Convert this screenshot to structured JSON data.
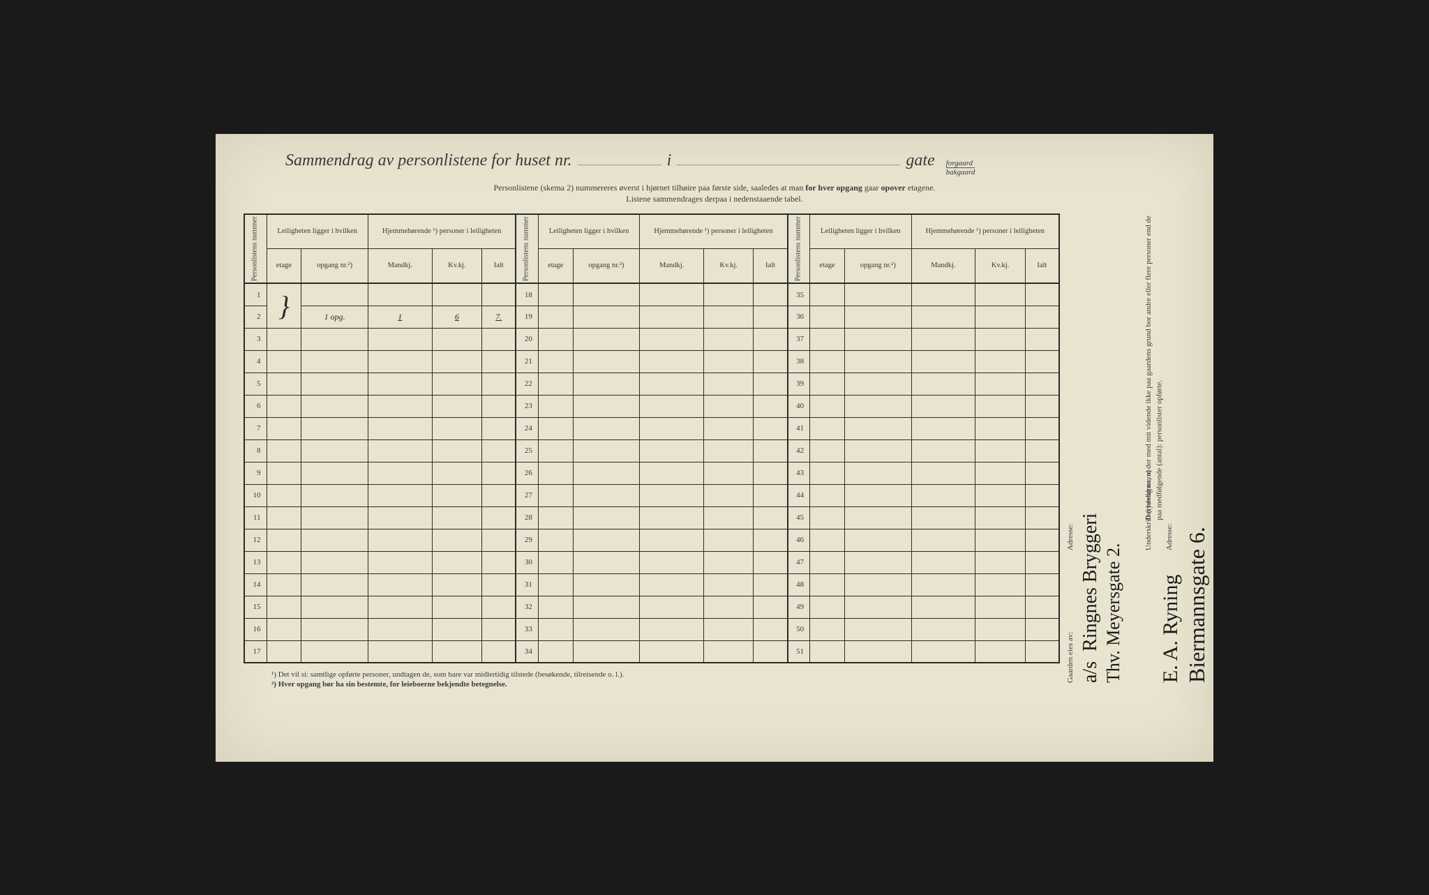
{
  "colors": {
    "paper": "#e8e4cf",
    "ink": "#3a3a3a",
    "border": "#2a2a2a",
    "handwriting": "#1a1a1a"
  },
  "typography": {
    "title_fontsize": 24,
    "subtitle_fontsize": 12,
    "table_fontsize": 11,
    "footnote_fontsize": 11,
    "handwriting_fontsize": 28
  },
  "title": {
    "main": "Sammendrag av personlistene for huset nr.",
    "i": "i",
    "gate": "gate",
    "forgaard": "forgaard",
    "bakgaard": "bakgaard"
  },
  "subtitle": {
    "line1a": "Personlistene (skema 2) nummereres øverst i hjørnet tilhøire paa første side, saaledes at man ",
    "line1b": "for hver opgang",
    "line1c": " gaar ",
    "line1d": "opover",
    "line1e": " etagene.",
    "line2": "Listene sammendrages derpaa i nedenstaaende tabel."
  },
  "headers": {
    "personlistens_nummer": "Personlistens nummer",
    "leiligheten": "Leiligheten ligger i hvilken",
    "hjemmehorende": "Hjemmehørende ¹) personer i leiligheten",
    "etage": "etage",
    "opgang": "opgang nr.²)",
    "mandkj": "Mandkj.",
    "kvkj": "Kv.kj.",
    "ialt": "Ialt"
  },
  "rows": {
    "col1": [
      1,
      2,
      3,
      4,
      5,
      6,
      7,
      8,
      9,
      10,
      11,
      12,
      13,
      14,
      15,
      16,
      17
    ],
    "col2": [
      18,
      19,
      20,
      21,
      22,
      23,
      24,
      25,
      26,
      27,
      28,
      29,
      30,
      31,
      32,
      33,
      34
    ],
    "col3": [
      35,
      36,
      37,
      38,
      39,
      40,
      41,
      42,
      43,
      44,
      45,
      46,
      47,
      48,
      49,
      50,
      51
    ]
  },
  "handwritten_row2": {
    "bracket": "}",
    "opgang": "1 opg.",
    "mandkj": "1",
    "kvkj": "6",
    "ialt": "7."
  },
  "footnotes": {
    "fn1": "¹)   Det vil si: samtlige opførte personer, undtagen de, som bare var midlertidig tilstede (besøkende, tilreisende o. l.).",
    "fn2": "²)   Hver opgang bør ha sin bestemte, for leieboerne bekjendte betegnelse."
  },
  "sidebar": {
    "owner_label": "Gaarden eies av:",
    "owner_hw_prefix": "a/s",
    "owner_hw": "Ringnes Bryggeri",
    "addr_label": "Adresse:",
    "addr_hw": "Thv. Meyersgate 2.",
    "attest": "Det bevidnes, at der med mit vidende ikke paa gaardens grund bor andre eller flere personer end de paa medfølgende (antal): personlister opførte.",
    "underskrift_label": "Underskrift (tydelig navn)",
    "bestyrer": "bestyrer",
    "sign_hw": "E. A. Ryning",
    "addr2_label": "Adresse:",
    "addr2_hw": "Biermannsgate 6."
  }
}
